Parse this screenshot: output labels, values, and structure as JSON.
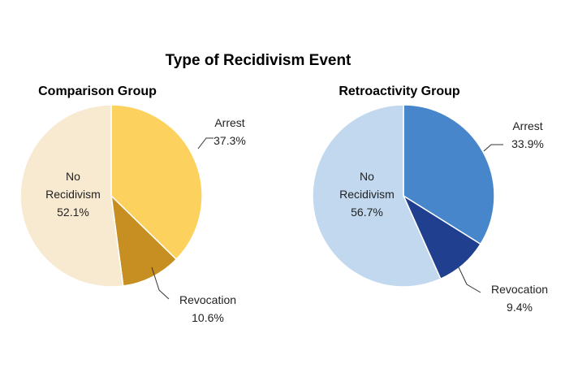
{
  "chart_data": {
    "title": "Type of Recidivism Event",
    "type": "pie",
    "charts": [
      {
        "title": "Comparison Group",
        "slices": [
          {
            "label": "Arrest",
            "value_label": "37.3%",
            "value": 37.3,
            "color": "#FDD15D"
          },
          {
            "label": "Revocation",
            "value_label": "10.6%",
            "value": 10.6,
            "color": "#C78E21"
          },
          {
            "label": "No Recidivism",
            "label_lines": [
              "No",
              "Recidivism"
            ],
            "value_label": "52.1%",
            "value": 52.1,
            "color": "#F7EAD1"
          }
        ]
      },
      {
        "title": "Retroactivity Group",
        "slices": [
          {
            "label": "Arrest",
            "value_label": "33.9%",
            "value": 33.9,
            "color": "#4786CB"
          },
          {
            "label": "Revocation",
            "value_label": "9.4%",
            "value": 9.4,
            "color": "#203F8E"
          },
          {
            "label": "No Recidivism",
            "label_lines": [
              "No",
              "Recidivism"
            ],
            "value_label": "56.7%",
            "value": 56.7,
            "color": "#C1D8EE"
          }
        ]
      }
    ]
  }
}
